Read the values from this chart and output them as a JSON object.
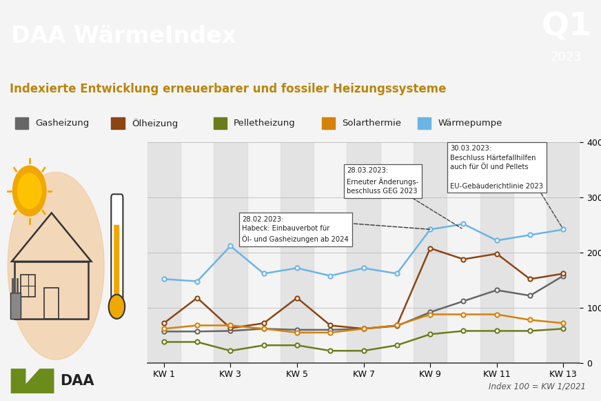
{
  "title": "DAA WärmeIndex",
  "subtitle": "Indexierte Entwicklung erneuerbarer und fossiler Heizungssysteme",
  "q1_text": "Q1",
  "year_text": "2023",
  "x_ticks_shown": [
    "KW 1",
    "KW 3",
    "KW 5",
    "KW 7",
    "KW 9",
    "KW 11",
    "KW 13"
  ],
  "series": {
    "Gasheizung": {
      "color": "#666666",
      "values": [
        57,
        57,
        58,
        62,
        60,
        60,
        62,
        67,
        92,
        112,
        132,
        122,
        158
      ]
    },
    "Ölheizung": {
      "color": "#8B4513",
      "values": [
        72,
        118,
        63,
        72,
        118,
        68,
        62,
        68,
        208,
        188,
        198,
        152,
        162
      ]
    },
    "Pelletheizung": {
      "color": "#6B7C1A",
      "values": [
        38,
        38,
        22,
        32,
        32,
        22,
        22,
        32,
        52,
        58,
        58,
        58,
        62
      ]
    },
    "Solarthermie": {
      "color": "#D4820A",
      "values": [
        62,
        68,
        68,
        62,
        55,
        55,
        62,
        68,
        88,
        88,
        88,
        78,
        72
      ]
    },
    "Wärmepumpe": {
      "color": "#6CB4E4",
      "values": [
        152,
        148,
        212,
        162,
        172,
        158,
        172,
        162,
        242,
        252,
        222,
        232,
        242
      ]
    }
  },
  "ylim": [
    0,
    400
  ],
  "yticks": [
    0,
    100,
    200,
    300,
    400
  ],
  "header_color": "#B8860B",
  "badge_color": "#7B5A00",
  "bg_color": "#F4F4F4",
  "footer_note": "Index 100 = KW 1/2021",
  "shaded_cols": [
    0,
    2,
    4,
    6,
    8,
    10,
    12
  ],
  "daa_green": "#6B8C1A",
  "legend_items": [
    "Gasheizung",
    "Ölheizung",
    "Pelletheizung",
    "Solarthermie",
    "Wärmepumpe"
  ],
  "legend_colors": [
    "#666666",
    "#8B4513",
    "#6B7C1A",
    "#D4820A",
    "#6CB4E4"
  ]
}
